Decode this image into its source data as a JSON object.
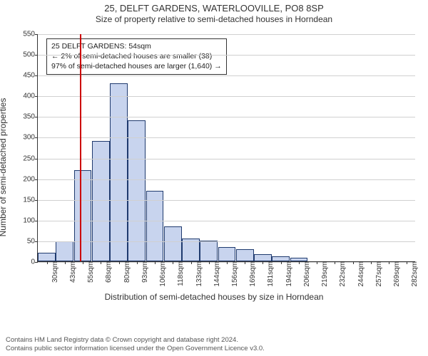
{
  "title_main": "25, DELFT GARDENS, WATERLOOVILLE, PO8 8SP",
  "title_sub": "Size of property relative to semi-detached houses in Horndean",
  "y_label": "Number of semi-detached properties",
  "x_label": "Distribution of semi-detached houses by size in Horndean",
  "chart": {
    "type": "bar",
    "ylim": [
      0,
      550
    ],
    "y_ticks": [
      0,
      50,
      100,
      150,
      200,
      250,
      300,
      350,
      400,
      450,
      500,
      550
    ],
    "x_labels": [
      "30sqm",
      "43sqm",
      "55sqm",
      "68sqm",
      "80sqm",
      "93sqm",
      "106sqm",
      "118sqm",
      "133sqm",
      "144sqm",
      "156sqm",
      "169sqm",
      "181sqm",
      "194sqm",
      "206sqm",
      "219sqm",
      "232sqm",
      "244sqm",
      "257sqm",
      "269sqm",
      "282sqm"
    ],
    "values": [
      20,
      48,
      220,
      290,
      430,
      340,
      170,
      85,
      55,
      50,
      35,
      30,
      18,
      12,
      8,
      0,
      0,
      0,
      0,
      0,
      0
    ],
    "bar_fill": "#c8d4ee",
    "bar_stroke": "#1f3a6e",
    "grid_color": "#d0d0d0",
    "background": "#ffffff",
    "marker_color": "#cc0000",
    "marker_x_index": 1.85
  },
  "info_box": {
    "line1": "25 DELFT GARDENS: 54sqm",
    "line2": "← 2% of semi-detached houses are smaller (38)",
    "line3": "97% of semi-detached houses are larger (1,640) →"
  },
  "footer": {
    "line1": "Contains HM Land Registry data © Crown copyright and database right 2024.",
    "line2": "Contains public sector information licensed under the Open Government Licence v3.0."
  }
}
